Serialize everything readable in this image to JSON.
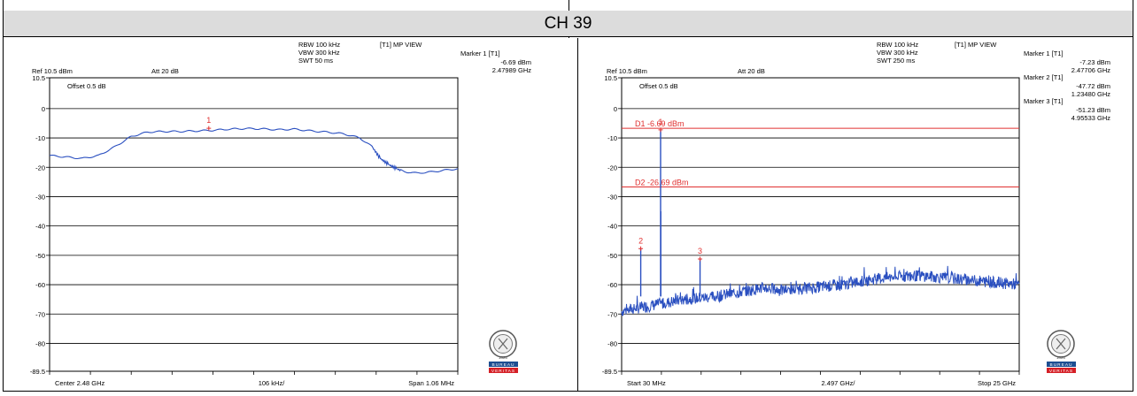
{
  "banner": {
    "title": "CH 39"
  },
  "colors": {
    "trace": "#2a4fc0",
    "marker": "#e03030",
    "grid": "#000000",
    "display_line": "#e03030",
    "seal_blue": "#1d4e91",
    "seal_red": "#d51f26"
  },
  "chart_data": [
    {
      "type": "line",
      "header": {
        "rbw": "RBW 100 kHz",
        "vbw": "VBW 300 kHz",
        "swt": "SWT 50 ms",
        "view": "[T1] MP VIEW",
        "ref": "Ref 10.5 dBm",
        "att": "Att  20 dB",
        "offset": "Offset 0.5 dB"
      },
      "markers_info": [
        {
          "label": "Marker 1 [T1]",
          "level": "-6.69 dBm",
          "freq": "2.47989 GHz"
        }
      ],
      "ylim": [
        -89.5,
        10.5
      ],
      "yticks": [
        "10.5",
        "0",
        "-10",
        "-20",
        "-30",
        "-40",
        "-50",
        "-60",
        "-70",
        "-80",
        "-89.5"
      ],
      "xlim": [
        0,
        10
      ],
      "x_labels": {
        "left": "Center 2.48 GHz",
        "mid": "106 kHz/",
        "right": "Span 1.06 MHz"
      },
      "trace_x": [
        0,
        0.4,
        0.8,
        1.2,
        1.6,
        2.0,
        2.4,
        2.8,
        3.2,
        3.6,
        4.0,
        4.4,
        4.8,
        5.2,
        5.6,
        6.0,
        6.4,
        6.8,
        7.2,
        7.6,
        7.9,
        8.1,
        8.3,
        8.5,
        8.7,
        9.0,
        9.4,
        9.8,
        10.0
      ],
      "trace_y": [
        -16,
        -16.5,
        -17,
        -16,
        -13,
        -9.5,
        -8,
        -7.8,
        -7.8,
        -7.6,
        -7.4,
        -7.0,
        -6.8,
        -6.9,
        -7.2,
        -7.0,
        -7.6,
        -8.0,
        -8.6,
        -10,
        -13,
        -17,
        -19,
        -20.5,
        -21.5,
        -22,
        -21.5,
        -20.8,
        -20.5
      ],
      "markers": [
        {
          "label": "1",
          "x": 3.9,
          "y": -6.69
        }
      ],
      "display_lines": [],
      "seal": {
        "caption": "1828",
        "name": "BUREAU",
        "name2": "VERITAS"
      }
    },
    {
      "type": "line",
      "header": {
        "rbw": "RBW 100 kHz",
        "vbw": "VBW 300 kHz",
        "swt": "SWT 250 ms",
        "view": "[T1] MP VIEW",
        "ref": "Ref 10.5 dBm",
        "att": "Att  20 dB",
        "offset": "Offset 0.5 dB"
      },
      "markers_info": [
        {
          "label": "Marker 1 [T1]",
          "level": "-7.23 dBm",
          "freq": "2.47706 GHz"
        },
        {
          "label": "Marker 2 [T1]",
          "level": "-47.72 dBm",
          "freq": "1.23480 GHz"
        },
        {
          "label": "Marker 3 [T1]",
          "level": "-51.23 dBm",
          "freq": "4.95533 GHz"
        }
      ],
      "ylim": [
        -89.5,
        10.5
      ],
      "yticks": [
        "10.5",
        "0",
        "-10",
        "-20",
        "-30",
        "-40",
        "-50",
        "-60",
        "-70",
        "-80",
        "-89.5"
      ],
      "xlim": [
        0.03,
        25
      ],
      "x_labels": {
        "left": "Start 30 MHz",
        "mid": "2.497 GHz/",
        "right": "Stop 25 GHz"
      },
      "trace_x": [
        0.03,
        1,
        2,
        3,
        4,
        5,
        6,
        7,
        8,
        9,
        10,
        11,
        12,
        13,
        14,
        15,
        16,
        17,
        18,
        19,
        20,
        21,
        22,
        23,
        24,
        25
      ],
      "trace_y": [
        -69,
        -68,
        -67,
        -66,
        -65,
        -64.5,
        -64,
        -63,
        -62,
        -61,
        -62,
        -61.5,
        -61,
        -60.5,
        -60,
        -59,
        -58,
        -57.5,
        -57,
        -57,
        -57.5,
        -58,
        -58.5,
        -59,
        -59.5,
        -60
      ],
      "spikes": [
        {
          "x": 1.23,
          "y": -47.72
        },
        {
          "x": 2.477,
          "y": -7.23
        },
        {
          "x": 2.49,
          "y": -35
        },
        {
          "x": 4.955,
          "y": -51.23
        }
      ],
      "markers": [
        {
          "label": "1",
          "x": 2.477,
          "y": -7.23
        },
        {
          "label": "2",
          "x": 1.23,
          "y": -47.72
        },
        {
          "label": "3",
          "x": 4.955,
          "y": -51.23
        }
      ],
      "display_lines": [
        {
          "label": "D1 -6.69 dBm",
          "y": -6.69
        },
        {
          "label": "D2 -26.69 dBm",
          "y": -26.69
        }
      ],
      "seal": {
        "caption": "1828",
        "name": "BUREAU",
        "name2": "VERITAS"
      }
    }
  ]
}
